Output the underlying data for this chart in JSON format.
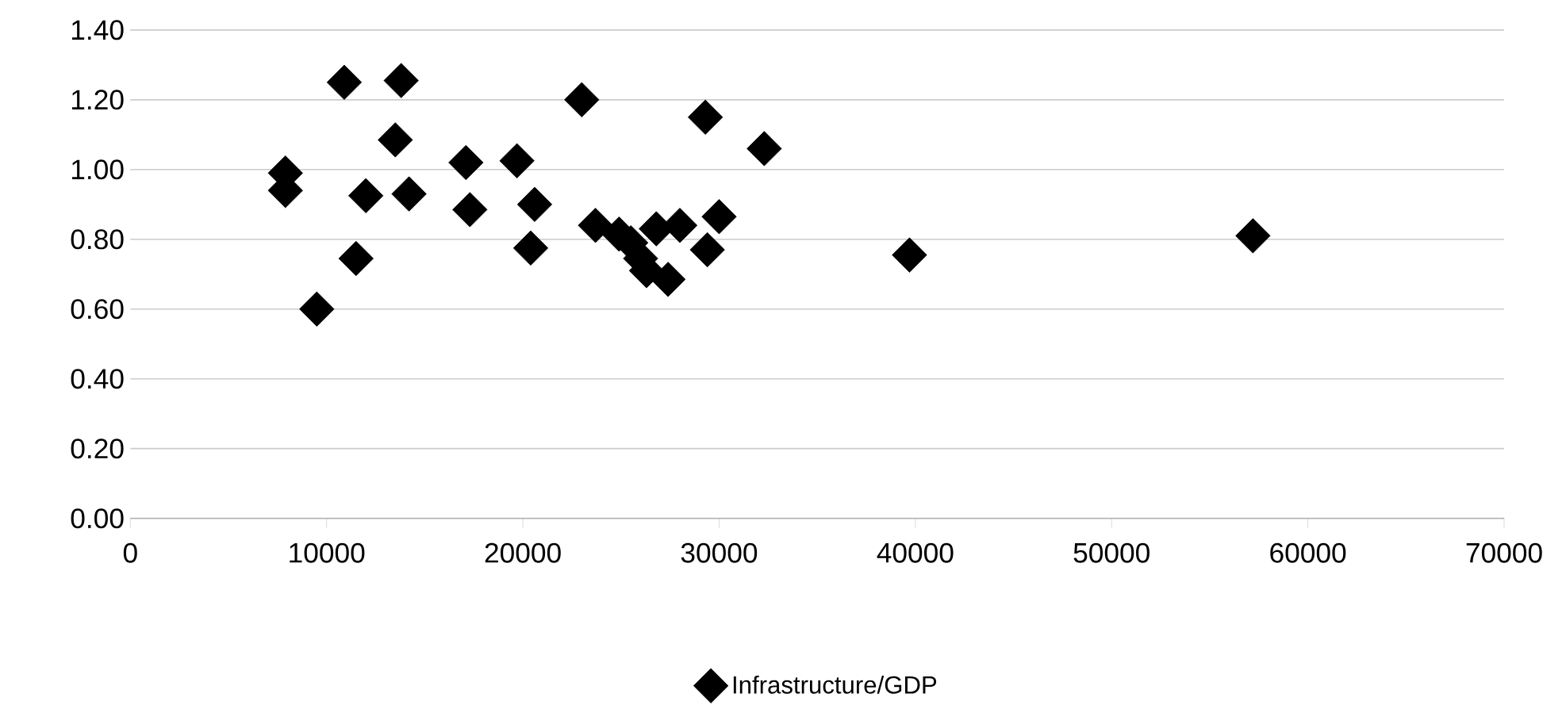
{
  "chart_data": {
    "type": "scatter",
    "marker": "diamond",
    "grid": "y",
    "legend": "bottom",
    "xlim": [
      0,
      70000
    ],
    "xticks": [
      0,
      10000,
      20000,
      30000,
      40000,
      50000,
      60000,
      70000
    ],
    "ylim": [
      0,
      1.4
    ],
    "yticks": [
      {
        "value": 0,
        "label": "0.00"
      },
      {
        "value": 0.2,
        "label": "0.20"
      },
      {
        "value": 0.4,
        "label": "0.40"
      },
      {
        "value": 0.6,
        "label": "0.60"
      },
      {
        "value": 0.8,
        "label": "0.80"
      },
      {
        "value": 1.0,
        "label": "1.00"
      },
      {
        "value": 1.2,
        "label": "1.20"
      },
      {
        "value": 1.4,
        "label": "1.40"
      }
    ],
    "series": [
      {
        "name": "Infrastructure/GDP",
        "color": "#000000",
        "x": [
          7900,
          7900,
          9500,
          10900,
          11500,
          12000,
          13500,
          13800,
          14200,
          17100,
          17300,
          19700,
          20400,
          20600,
          23000,
          23700,
          24900,
          25500,
          26000,
          26300,
          26800,
          27400,
          28000,
          29300,
          29400,
          30000,
          32300,
          39700,
          57200
        ],
        "values": [
          0.99,
          0.94,
          0.6,
          1.25,
          0.745,
          0.925,
          1.085,
          1.255,
          0.93,
          1.02,
          0.885,
          1.025,
          0.775,
          0.9,
          1.2,
          0.84,
          0.815,
          0.79,
          0.745,
          0.71,
          0.83,
          0.685,
          0.84,
          1.15,
          0.77,
          0.865,
          1.06,
          0.755,
          0.81
        ]
      }
    ]
  }
}
